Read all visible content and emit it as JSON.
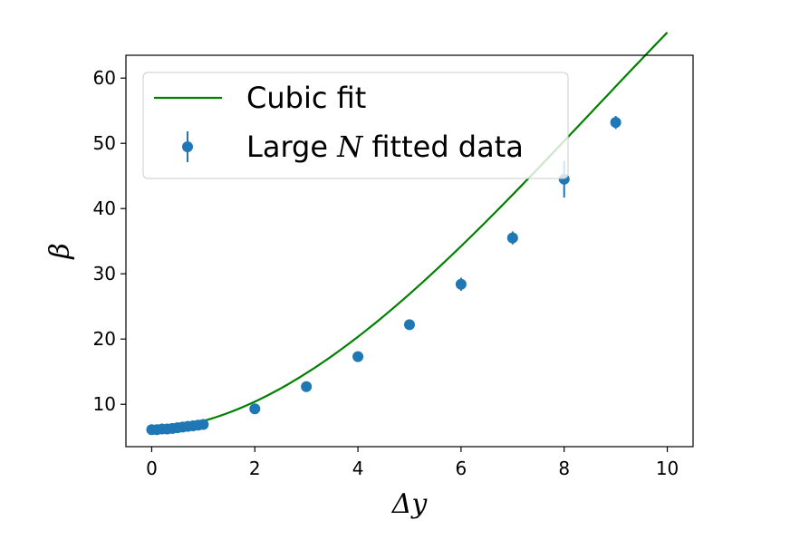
{
  "chart_data": {
    "type": "scatter",
    "title": "",
    "xlabel": "Δy",
    "ylabel": "β",
    "xlim": [
      -0.5,
      10.5
    ],
    "ylim": [
      3.5,
      63.5
    ],
    "xticks": [
      0,
      2,
      4,
      6,
      8,
      10
    ],
    "yticks": [
      10,
      20,
      30,
      40,
      50,
      60
    ],
    "xtick_labels": [
      "0",
      "2",
      "4",
      "6",
      "8",
      "10"
    ],
    "ytick_labels": [
      "10",
      "20",
      "30",
      "40",
      "50",
      "60"
    ],
    "grid": false,
    "legend_position": "top-left",
    "series": [
      {
        "name": "Cubic fit",
        "kind": "line",
        "color": "#008000",
        "model": {
          "a0": 6.1,
          "a1": 0.45,
          "a2": 0.92,
          "a3": -0.0356
        },
        "x_range": [
          0,
          10
        ]
      },
      {
        "name": "Large N fitted data",
        "legend_parts": [
          "Large ",
          "N",
          " fitted data"
        ],
        "kind": "errorbar",
        "color": "#1f77b4",
        "points": [
          {
            "x": 0.0,
            "y": 6.1,
            "err": 0.2
          },
          {
            "x": 0.1,
            "y": 6.1,
            "err": 0.2
          },
          {
            "x": 0.2,
            "y": 6.2,
            "err": 0.2
          },
          {
            "x": 0.3,
            "y": 6.2,
            "err": 0.2
          },
          {
            "x": 0.4,
            "y": 6.3,
            "err": 0.2
          },
          {
            "x": 0.5,
            "y": 6.4,
            "err": 0.2
          },
          {
            "x": 0.6,
            "y": 6.5,
            "err": 0.2
          },
          {
            "x": 0.7,
            "y": 6.6,
            "err": 0.2
          },
          {
            "x": 0.8,
            "y": 6.7,
            "err": 0.2
          },
          {
            "x": 0.9,
            "y": 6.8,
            "err": 0.2
          },
          {
            "x": 1.0,
            "y": 6.9,
            "err": 0.2
          },
          {
            "x": 2.0,
            "y": 9.3,
            "err": 0.3
          },
          {
            "x": 3.0,
            "y": 12.7,
            "err": 0.3
          },
          {
            "x": 4.0,
            "y": 17.3,
            "err": 0.4
          },
          {
            "x": 5.0,
            "y": 22.2,
            "err": 0.4
          },
          {
            "x": 6.0,
            "y": 28.4,
            "err": 1.0
          },
          {
            "x": 7.0,
            "y": 35.5,
            "err": 1.0
          },
          {
            "x": 8.0,
            "y": 44.5,
            "err": 2.8
          },
          {
            "x": 9.0,
            "y": 53.2,
            "err": 1.0
          }
        ]
      }
    ]
  }
}
